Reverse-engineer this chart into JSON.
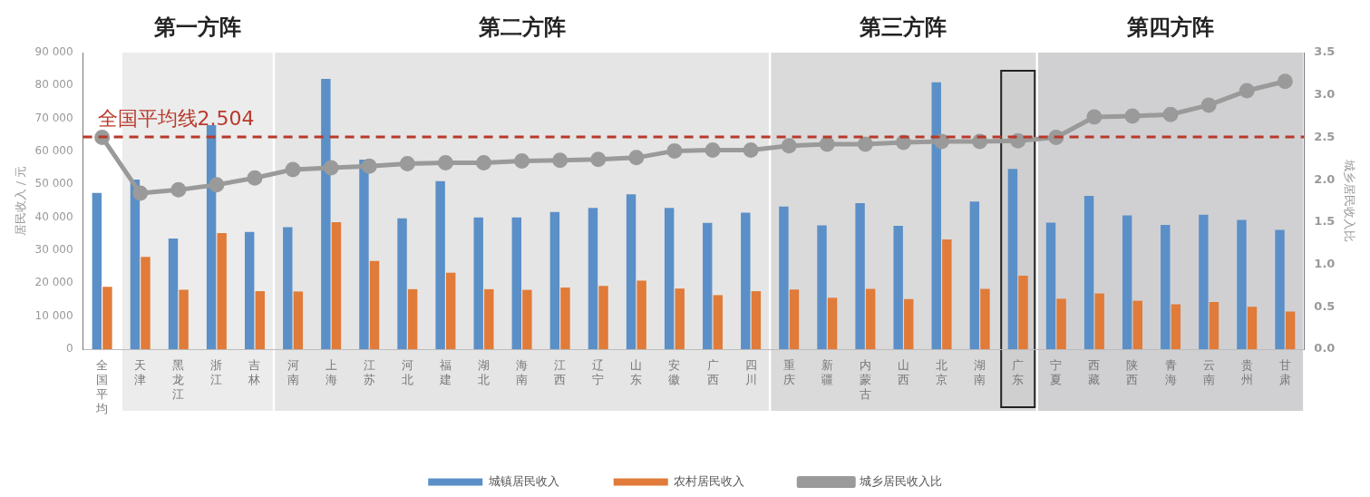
{
  "chart_data": {
    "type": "bar",
    "categories": [
      "全国平均",
      "天津",
      "黑龙江",
      "浙江",
      "吉林",
      "河南",
      "上海",
      "江苏",
      "河北",
      "福建",
      "湖北",
      "海南",
      "江西",
      "辽宁",
      "山东",
      "安徽",
      "广西",
      "四川",
      "重庆",
      "新疆",
      "内蒙古",
      "山西",
      "北京",
      "湖南",
      "广东",
      "宁夏",
      "西藏",
      "陕西",
      "青海",
      "云南",
      "贵州",
      "甘肃"
    ],
    "series": [
      {
        "name": "城镇居民收入",
        "color": "#5b8fc7",
        "values": [
          47400,
          51500,
          33600,
          68000,
          35600,
          37000,
          82000,
          57500,
          39700,
          51000,
          40000,
          40000,
          41600,
          42900,
          47000,
          42900,
          38300,
          41400,
          43300,
          37600,
          44300,
          37400,
          81000,
          44800,
          54700,
          38400,
          46500,
          40600,
          37700,
          40800,
          39200,
          36200
        ]
      },
      {
        "name": "农村居民收入",
        "color": "#e07b39",
        "values": [
          18900,
          28000,
          18000,
          35200,
          17600,
          17500,
          38500,
          26800,
          18200,
          23200,
          18200,
          18000,
          18700,
          19200,
          20800,
          18400,
          16400,
          17600,
          18100,
          15600,
          18300,
          15200,
          33300,
          18300,
          22300,
          15300,
          16900,
          14700,
          13600,
          14300,
          12900,
          11400
        ]
      },
      {
        "name": "城乡居民收入比",
        "type": "line",
        "axis": "y2",
        "color": "#9a9a9a",
        "marker": "circle",
        "values": [
          2.5,
          1.84,
          1.88,
          1.94,
          2.02,
          2.12,
          2.14,
          2.16,
          2.19,
          2.2,
          2.2,
          2.22,
          2.23,
          2.24,
          2.26,
          2.34,
          2.35,
          2.35,
          2.4,
          2.42,
          2.42,
          2.44,
          2.45,
          2.45,
          2.46,
          2.5,
          2.74,
          2.75,
          2.77,
          2.88,
          3.05,
          3.16
        ]
      }
    ],
    "ylabel": "居民收入 / 元",
    "y2label": "城乡居民收入比",
    "ylim": [
      0,
      90000
    ],
    "yticks": [
      {
        "value": 0,
        "label": "0"
      },
      {
        "value": 10000,
        "label": "10 000"
      },
      {
        "value": 20000,
        "label": "20 000"
      },
      {
        "value": 30000,
        "label": "30 000"
      },
      {
        "value": 40000,
        "label": "40 000"
      },
      {
        "value": 50000,
        "label": "50 000"
      },
      {
        "value": 60000,
        "label": "60 000"
      },
      {
        "value": 70000,
        "label": "70 000"
      },
      {
        "value": 80000,
        "label": "80 000"
      },
      {
        "value": 90000,
        "label": "90 000"
      }
    ],
    "y2lim": [
      0,
      3.5
    ],
    "y2ticks": [
      {
        "value": 0,
        "label": "0.0"
      },
      {
        "value": 0.5,
        "label": "0.5"
      },
      {
        "value": 1,
        "label": "1.0"
      },
      {
        "value": 1.5,
        "label": "1.5"
      },
      {
        "value": 2,
        "label": "2.0"
      },
      {
        "value": 2.5,
        "label": "2.5"
      },
      {
        "value": 3,
        "label": "3.0"
      },
      {
        "value": 3.5,
        "label": "3.5"
      }
    ],
    "ref_lines": [
      {
        "axis": "y2",
        "value": 2.504,
        "label": "全国平均线2.504",
        "color": "#b8392b",
        "line_style": "dashed"
      }
    ],
    "bands": [
      {
        "axis": "x",
        "from": "天津",
        "to": "吉林",
        "label": "第一方阵",
        "color": "#ececec"
      },
      {
        "axis": "x",
        "from": "河南",
        "to": "四川",
        "label": "第二方阵",
        "color": "#e5e5e5"
      },
      {
        "axis": "x",
        "from": "重庆",
        "to": "广东",
        "label": "第三方阵",
        "color": "#dadada"
      },
      {
        "axis": "x",
        "from": "宁夏",
        "to": "甘肃",
        "label": "第四方阵",
        "color": "#d0d0d3"
      },
      {
        "axis": "x",
        "from": "广东",
        "to": "广东",
        "color": "#222222"
      }
    ],
    "legend": "bottom",
    "grid": false
  }
}
